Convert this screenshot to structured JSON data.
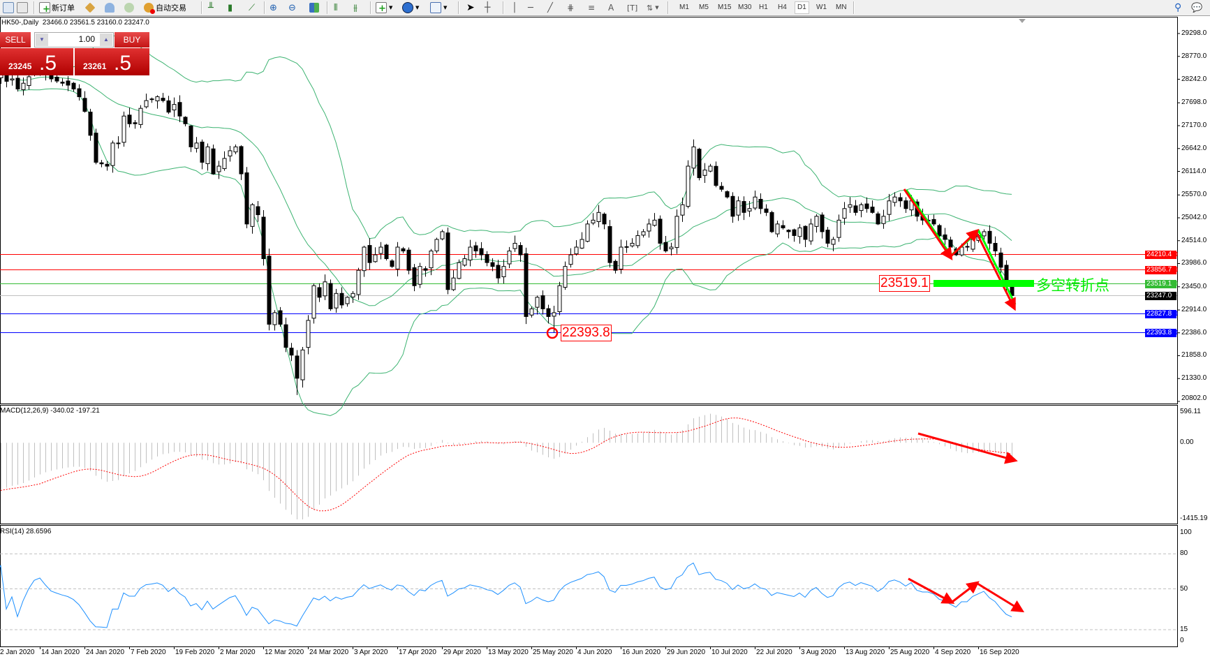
{
  "toolbar": {
    "new_order_label": "新订单",
    "auto_trading_label": "自动交易",
    "timeframes": [
      "M1",
      "M5",
      "M15",
      "M30",
      "H1",
      "H4",
      "D1",
      "W1",
      "MN"
    ],
    "active_timeframe": "D1",
    "icons": [
      "new-chart-icon",
      "profiles-icon",
      "new-order-icon",
      "metaeditor-icon",
      "market-watch-icon",
      "signals-icon",
      "auto-trading-icon",
      "bar-chart-icon",
      "candlestick-icon",
      "line-chart-icon",
      "zoom-in-icon",
      "zoom-out-icon",
      "tile-windows-icon",
      "autoscroll-icon",
      "chart-shift-icon",
      "indicators-icon",
      "periods-icon",
      "templates-icon",
      "cursor-icon",
      "crosshair-icon",
      "vertical-line-icon",
      "horizontal-line-icon",
      "trendline-icon",
      "fibonacci-icon",
      "fibonacci-fan-icon",
      "text-icon",
      "text-label-icon",
      "arrows-icon",
      "search-icon",
      "chat-icon"
    ]
  },
  "chart": {
    "symbol": "HK50-,Daily",
    "ohlc_text": "23466.0 23561.5 23160.0 23247.0"
  },
  "trade_panel": {
    "sell_label": "SELL",
    "buy_label": "BUY",
    "lot": "1.00",
    "sell_price_main": "23245",
    "sell_price_frac": ".5",
    "buy_price_main": "23261",
    "buy_price_frac": ".5"
  },
  "indicators": {
    "macd_title": "MACD(12,26,9) -340.02 -197.21",
    "rsi_title": "RSI(14) 28.6596"
  },
  "price_axis": [
    "29298.0",
    "28770.0",
    "28242.0",
    "27698.0",
    "27170.0",
    "26642.0",
    "26114.0",
    "25570.0",
    "25042.0",
    "24514.0",
    "23986.0",
    "23450.0",
    "22914.0",
    "22386.0",
    "21858.0",
    "21330.0",
    "20802.0"
  ],
  "levels": [
    {
      "label": "24210.4",
      "price": 24210.4,
      "color": "#ff0000"
    },
    {
      "label": "23856.7",
      "price": 23856.7,
      "color": "#ff0000"
    },
    {
      "label": "23519.1",
      "price": 23519.1,
      "color": "#33bb33"
    },
    {
      "label": "23247.0",
      "price": 23247.0,
      "color": "#000000"
    },
    {
      "label": "22827.8",
      "price": 22827.8,
      "color": "#0000ff"
    },
    {
      "label": "22393.8",
      "price": 22393.8,
      "color": "#0000ff"
    }
  ],
  "macd_axis": [
    "596.11",
    "0.00",
    "-1415.19"
  ],
  "rsi_axis": [
    "100",
    "80",
    "50",
    "15",
    "0"
  ],
  "dates": [
    "2 Jan 2020",
    "14 Jan 2020",
    "24 Jan 2020",
    "7 Feb 2020",
    "19 Feb 2020",
    "2 Mar 2020",
    "12 Mar 2020",
    "24 Mar 2020",
    "3 Apr 2020",
    "17 Apr 2020",
    "29 Apr 2020",
    "13 May 2020",
    "25 May 2020",
    "4 Jun 2020",
    "16 Jun 2020",
    "29 Jun 2020",
    "10 Jul 2020",
    "22 Jul 2020",
    "3 Aug 2020",
    "13 Aug 2020",
    "25 Aug 2020",
    "4 Sep 2020",
    "16 Sep 2020"
  ],
  "annotations": {
    "low_label": "22393.8",
    "pivot_label": "23519.1",
    "pivot_text": "多空转折点"
  },
  "colors": {
    "bands": "#3cb371",
    "macd_hist": "#c0c0c0",
    "macd_signal": "#ff0000",
    "rsi": "#1e90ff",
    "arrow": "#ff0000",
    "pivot": "#00ff00"
  },
  "chart_data": {
    "type": "candlestick",
    "price_range": [
      20802.0,
      29298.0
    ],
    "macd_range": [
      -1415.19,
      596.11
    ],
    "rsi_range": [
      0,
      100
    ],
    "rsi_levels": [
      80,
      50,
      15
    ],
    "last_bar": {
      "open": 23466.0,
      "high": 23561.5,
      "low": 23160.0,
      "close": 23247.0
    },
    "closes": [
      28300,
      28400,
      28194,
      28250,
      28016,
      28150,
      28300,
      28450,
      28500,
      28380,
      28250,
      28200,
      28150,
      28105,
      28016,
      27838,
      27500,
      26947,
      26324,
      26288,
      26235,
      26769,
      26769,
      27392,
      27214,
      27214,
      27570,
      27749,
      27784,
      27838,
      27749,
      27482,
      27660,
      27392,
      27214,
      26680,
      26769,
      26324,
      26680,
      26057,
      26235,
      26413,
      26591,
      26680,
      26057,
      24899,
      25344,
      25113,
      24098,
      22584,
      22851,
      22584,
      22050,
      21871,
      21337,
      21990,
      22673,
      23474,
      23207,
      23563,
      22940,
      23296,
      23029,
      23207,
      23296,
      23830,
      24365,
      24008,
      24187,
      24365,
      24098,
      23919,
      24365,
      24276,
      23830,
      23474,
      23919,
      23830,
      24276,
      24543,
      24721,
      23385,
      23652,
      24008,
      24098,
      24365,
      24276,
      24187,
      24008,
      23919,
      23652,
      23919,
      24276,
      24454,
      24187,
      22762,
      22940,
      23207,
      22940,
      22762,
      22851,
      23474,
      23919,
      24187,
      24365,
      24543,
      24899,
      24988,
      25166,
      24899,
      24008,
      23830,
      24365,
      24365,
      24454,
      24632,
      24721,
      24899,
      24988,
      24454,
      24276,
      24365,
      25077,
      25344,
      26235,
      26680,
      25968,
      26146,
      26235,
      25790,
      25700,
      25522,
      25077,
      25433,
      25166,
      25255,
      25522,
      25255,
      25166,
      24721,
      24899,
      24810,
      24721,
      24632,
      24810,
      24543,
      24899,
      25077,
      24721,
      24454,
      24543,
      24988,
      25255,
      25344,
      25166,
      25344,
      25255,
      25166,
      24899,
      25077,
      25433,
      25522,
      25433,
      25255,
      25433,
      25077,
      24988,
      24988,
      24899,
      24632,
      24543,
      24365,
      24187,
      24365,
      24365,
      24543,
      24632,
      24721,
      24454,
      24276,
      23900,
      23466,
      23247
    ]
  }
}
